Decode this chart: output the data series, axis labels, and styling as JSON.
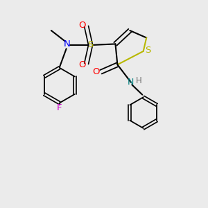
{
  "background_color": "#ebebeb",
  "colors": {
    "S": "#b8b800",
    "N_blue": "#0000ff",
    "N_teal": "#008080",
    "O": "#ff0000",
    "F": "#cc00cc",
    "H": "#707070",
    "C": "#000000"
  },
  "figsize": [
    3.0,
    3.0
  ],
  "dpi": 100
}
